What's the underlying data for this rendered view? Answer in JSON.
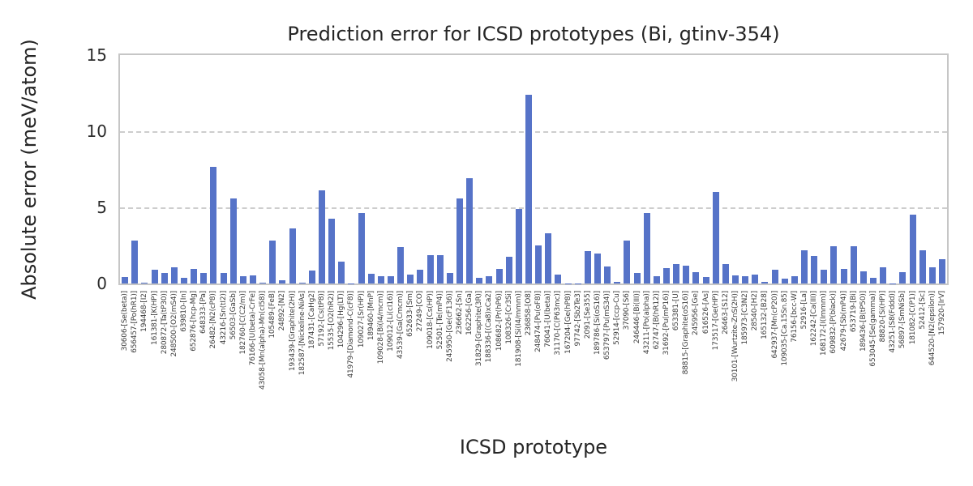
{
  "chart_data": {
    "type": "bar",
    "title": "Prediction error for ICSD prototypes (Bi, gtinv-354)",
    "xlabel": "ICSD prototype",
    "ylabel": "Absolute error (meV/atom)",
    "ylim": [
      0,
      15
    ],
    "yticks": [
      0,
      5,
      10,
      15
    ],
    "grid": "horizontal-dashed",
    "legend": "none",
    "bar_color": "#5673c8",
    "grid_color": "#cdcdcd",
    "spine_color": "#c6c6c6",
    "text_color": "#262626",
    "tick_text_color": "#3d3d3d",
    "categories": [
      "30606-[Se(beta)]",
      "656457-[Po(hR1)]",
      "194468-[I2]",
      "161381-[K(HP)]",
      "280872-[Ta(tP30)]",
      "248500-[O2(mS4)]",
      "639810-[In]",
      "652876-[hcp-Mg]",
      "648333-[Pa]",
      "26482-[N2(cP8)]",
      "43216-[Sn(tI2)]",
      "56503-[GaSb]",
      "182760-[C(C2/m)]",
      "76166-[U(beta)-CrFe]",
      "43058-[Mn(alpha)-Mn(cI58)]",
      "105489-[FeB]",
      "24892-[N2]",
      "193439-[Graphite(2H)]",
      "182587-[Nickeline-NiAs]",
      "187431-[CaHg2]",
      "57192-[Cs(tP8)]",
      "15535-[O2(hR2)]",
      "104296-[Hg(LT)]",
      "41979-[Diamond-C(cF8)]",
      "109027-[Sr(HP)]",
      "189460-[MnP]",
      "109028-[Bi(I4/mcm)]",
      "109012-[Li(cI16)]",
      "43539-[Ga(Cmcm)]",
      "652633-[Sm]",
      "27249-[CO]",
      "109018-[Cs(HP)]",
      "52501-[Te(mP4)]",
      "245950-[Ge(cF136)]",
      "236662-[Sn]",
      "162256-[Ga]",
      "31829-[Graphite(3R)]",
      "188336-[(Ca8)xCa2]",
      "108682-[Pr(hP6)]",
      "108326-[Cr3Si]",
      "181908-[Si(I4/mmm)]",
      "236858-[O8]",
      "248474-[Pu(oF8)]",
      "76041-[U(beta)]",
      "31170-[C(P63mc)]",
      "167204-[Ge(hP8)]",
      "97742-[Sb2Te3]",
      "2091-[Se355]",
      "189786-[Si(oS16)]",
      "653797-[Pu(mS34)]",
      "52914-[ccp-Cu]",
      "37090-[S6]",
      "246446-[Bi(III)]",
      "43211-[Po(alpha)]",
      "62747-[B(hR12)]",
      "31692-[Pu(mP16)]",
      "653381-[U]",
      "88815-[Graphite(oS16)]",
      "245956-[Ge]",
      "616526-[As]",
      "173517-[Ge(HP)]",
      "26463-[S12]",
      "30101-[Wurtzite-ZnS(2H)]",
      "185973-[C3N2]",
      "28540-[H2]",
      "165132-[B28]",
      "642937-[Mn(cP20)]",
      "109035-[Ca.15Sn.85]",
      "76156-[bcc-W]",
      "52916-[La]",
      "162242-[Ca(III)]",
      "168172-[I(Immm)]",
      "609832-[P(black)]",
      "42679-[Sb(mP4)]",
      "653719-[Bi]",
      "189436-[B(tP50)]",
      "653045-[Se(gamma)]",
      "88820-[Si(HP)]",
      "43251-[S8(Fddd)]",
      "56897-[SmNiSb]",
      "181082-[C(P1)]",
      "52412-[Sc]",
      "644520-[N2(epsilon)]",
      "157920-[IrV]"
    ],
    "values": [
      0.45,
      2.8,
      0.03,
      0.9,
      0.7,
      1.05,
      0.4,
      0.95,
      0.7,
      7.65,
      0.7,
      5.6,
      0.5,
      0.55,
      0.03,
      2.8,
      0.2,
      3.6,
      0.08,
      0.85,
      6.1,
      4.25,
      1.45,
      0.02,
      4.65,
      0.65,
      0.5,
      0.5,
      2.4,
      0.6,
      0.9,
      1.85,
      1.85,
      0.7,
      5.6,
      6.9,
      0.4,
      0.5,
      0.95,
      1.75,
      4.9,
      12.4,
      2.5,
      3.3,
      0.6,
      0.02,
      0.02,
      2.15,
      1.95,
      1.1,
      0.12,
      2.8,
      0.7,
      4.65,
      0.5,
      1.0,
      1.3,
      1.15,
      0.75,
      0.45,
      6.0,
      1.3,
      0.55,
      0.5,
      0.6,
      0.1,
      0.9,
      0.3,
      0.5,
      2.2,
      1.8,
      0.9,
      2.45,
      0.95,
      2.45,
      0.8,
      0.35,
      1.05,
      0.02,
      0.75,
      4.5,
      2.2,
      1.05,
      1.6
    ]
  }
}
